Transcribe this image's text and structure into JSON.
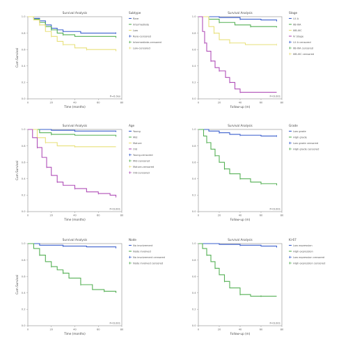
{
  "chart_data": [
    {
      "type": "line",
      "title": "Survival Analysis",
      "xlabel": "Time (months)",
      "ylabel": "Cum Survival",
      "xlim": [
        0,
        80
      ],
      "ylim": [
        0.0,
        1.0
      ],
      "x_ticks": [
        0,
        20,
        40,
        60,
        80
      ],
      "y_ticks": [
        0.0,
        0.2,
        0.4,
        0.6,
        0.8,
        1.0
      ],
      "legend_title": "Subtype",
      "legend_labels": [
        "Rare",
        "Intermediate",
        "Low",
        "Rare-censored",
        "Intermediate-censored",
        "Low-censored"
      ],
      "p_value": "P=0.0xx",
      "grid": false,
      "series": [
        {
          "color": "#3a5fcd",
          "points": [
            [
              0,
              1.0
            ],
            [
              5,
              0.98
            ],
            [
              10,
              0.95
            ],
            [
              15,
              0.9
            ],
            [
              20,
              0.86
            ],
            [
              25,
              0.84
            ],
            [
              30,
              0.82
            ],
            [
              45,
              0.8
            ],
            [
              75,
              0.8
            ]
          ]
        },
        {
          "color": "#55b055",
          "points": [
            [
              0,
              1.0
            ],
            [
              5,
              0.97
            ],
            [
              10,
              0.93
            ],
            [
              15,
              0.88
            ],
            [
              20,
              0.84
            ],
            [
              25,
              0.8
            ],
            [
              30,
              0.78
            ],
            [
              40,
              0.76
            ],
            [
              75,
              0.75
            ]
          ]
        },
        {
          "color": "#e8e07a",
          "points": [
            [
              0,
              1.0
            ],
            [
              5,
              0.96
            ],
            [
              10,
              0.9
            ],
            [
              15,
              0.82
            ],
            [
              20,
              0.76
            ],
            [
              25,
              0.7
            ],
            [
              30,
              0.66
            ],
            [
              40,
              0.62
            ],
            [
              50,
              0.6
            ],
            [
              75,
              0.58
            ]
          ]
        }
      ]
    },
    {
      "type": "line",
      "title": "Survival Analysis",
      "xlabel": "Follow-up (m)",
      "ylabel": "",
      "xlim": [
        0,
        80
      ],
      "ylim": [
        0.0,
        1.0
      ],
      "x_ticks": [
        0,
        20,
        40,
        60,
        80
      ],
      "y_ticks": [
        0.0,
        0.2,
        0.4,
        0.6,
        0.8,
        1.0
      ],
      "legend_title": "Stage",
      "legend_labels": [
        "I-II A",
        "IIB-IIIA",
        "IIIB-IIIC",
        "IV Stage",
        "I-II A censored",
        "IIB-IIIA censored",
        "IIIB-IIIC censored"
      ],
      "p_value": "P<0.001",
      "grid": false,
      "series": [
        {
          "color": "#3a5fcd",
          "points": [
            [
              0,
              1.0
            ],
            [
              20,
              0.99
            ],
            [
              40,
              0.97
            ],
            [
              60,
              0.96
            ],
            [
              75,
              0.95
            ]
          ]
        },
        {
          "color": "#55b055",
          "points": [
            [
              0,
              1.0
            ],
            [
              10,
              0.97
            ],
            [
              20,
              0.93
            ],
            [
              35,
              0.9
            ],
            [
              50,
              0.88
            ],
            [
              75,
              0.87
            ]
          ]
        },
        {
          "color": "#e8e07a",
          "points": [
            [
              0,
              1.0
            ],
            [
              10,
              0.88
            ],
            [
              15,
              0.8
            ],
            [
              20,
              0.72
            ],
            [
              30,
              0.68
            ],
            [
              45,
              0.66
            ],
            [
              75,
              0.66
            ]
          ]
        },
        {
          "color": "#b04fb8",
          "points": [
            [
              0,
              1.0
            ],
            [
              4,
              0.82
            ],
            [
              6,
              0.68
            ],
            [
              8,
              0.58
            ],
            [
              12,
              0.46
            ],
            [
              16,
              0.38
            ],
            [
              20,
              0.34
            ],
            [
              26,
              0.26
            ],
            [
              30,
              0.2
            ],
            [
              35,
              0.12
            ],
            [
              40,
              0.08
            ],
            [
              75,
              0.08
            ]
          ]
        }
      ]
    },
    {
      "type": "line",
      "title": "Survival Analysis",
      "xlabel": "Time (months)",
      "ylabel": "Cum Survival",
      "xlim": [
        0,
        80
      ],
      "ylim": [
        0.0,
        1.0
      ],
      "x_ticks": [
        0,
        20,
        40,
        60,
        80
      ],
      "y_ticks": [
        0.0,
        0.2,
        0.4,
        0.6,
        0.8,
        1.0
      ],
      "legend_title": "Age",
      "legend_labels": [
        "Young",
        "Mid",
        "Mature",
        "Old",
        "Young-censored",
        "Mid-censored",
        "Mature-censored",
        "Old-censored"
      ],
      "p_value": "P<0.001",
      "grid": false,
      "series": [
        {
          "color": "#3a5fcd",
          "points": [
            [
              0,
              1.0
            ],
            [
              20,
              0.99
            ],
            [
              40,
              0.98
            ],
            [
              75,
              0.97
            ]
          ]
        },
        {
          "color": "#55b055",
          "points": [
            [
              0,
              1.0
            ],
            [
              10,
              0.96
            ],
            [
              20,
              0.94
            ],
            [
              40,
              0.93
            ],
            [
              75,
              0.92
            ]
          ]
        },
        {
          "color": "#e8e07a",
          "points": [
            [
              0,
              1.0
            ],
            [
              8,
              0.9
            ],
            [
              15,
              0.84
            ],
            [
              25,
              0.8
            ],
            [
              40,
              0.79
            ],
            [
              75,
              0.79
            ]
          ]
        },
        {
          "color": "#b04fb8",
          "points": [
            [
              0,
              1.0
            ],
            [
              4,
              0.9
            ],
            [
              8,
              0.78
            ],
            [
              12,
              0.66
            ],
            [
              16,
              0.54
            ],
            [
              20,
              0.44
            ],
            [
              25,
              0.36
            ],
            [
              30,
              0.32
            ],
            [
              40,
              0.28
            ],
            [
              50,
              0.24
            ],
            [
              60,
              0.22
            ],
            [
              70,
              0.2
            ],
            [
              75,
              0.18
            ]
          ]
        }
      ]
    },
    {
      "type": "line",
      "title": "Survival Analysis",
      "xlabel": "Follow-up (m)",
      "ylabel": "",
      "xlim": [
        0,
        80
      ],
      "ylim": [
        0.0,
        1.0
      ],
      "x_ticks": [
        0,
        20,
        40,
        60,
        80
      ],
      "y_ticks": [
        0.0,
        0.2,
        0.4,
        0.6,
        0.8,
        1.0
      ],
      "legend_title": "Grade",
      "legend_labels": [
        "Low grade",
        "High grade",
        "Low grade censored",
        "High grade censored"
      ],
      "p_value": "P<0.001",
      "grid": false,
      "series": [
        {
          "color": "#3a5fcd",
          "points": [
            [
              0,
              1.0
            ],
            [
              10,
              0.98
            ],
            [
              20,
              0.96
            ],
            [
              30,
              0.94
            ],
            [
              40,
              0.93
            ],
            [
              60,
              0.92
            ],
            [
              75,
              0.92
            ]
          ]
        },
        {
          "color": "#55b055",
          "points": [
            [
              0,
              1.0
            ],
            [
              5,
              0.92
            ],
            [
              8,
              0.84
            ],
            [
              12,
              0.76
            ],
            [
              16,
              0.68
            ],
            [
              20,
              0.6
            ],
            [
              25,
              0.52
            ],
            [
              30,
              0.46
            ],
            [
              40,
              0.4
            ],
            [
              50,
              0.36
            ],
            [
              60,
              0.34
            ],
            [
              75,
              0.32
            ]
          ]
        }
      ]
    },
    {
      "type": "line",
      "title": "Survival Analysis",
      "xlabel": "Time (months)",
      "ylabel": "Cum Survival",
      "xlim": [
        0,
        80
      ],
      "ylim": [
        0.0,
        1.0
      ],
      "x_ticks": [
        0,
        20,
        40,
        60,
        80
      ],
      "y_ticks": [
        0.0,
        0.2,
        0.4,
        0.6,
        0.8,
        1.0
      ],
      "legend_title": "Node",
      "legend_labels": [
        "No involvement",
        "Node involved",
        "No involvement censored",
        "Node involved censored"
      ],
      "p_value": "P<0.001",
      "grid": false,
      "series": [
        {
          "color": "#3a5fcd",
          "points": [
            [
              0,
              1.0
            ],
            [
              10,
              0.98
            ],
            [
              30,
              0.97
            ],
            [
              50,
              0.96
            ],
            [
              75,
              0.95
            ]
          ]
        },
        {
          "color": "#55b055",
          "points": [
            [
              0,
              1.0
            ],
            [
              5,
              0.94
            ],
            [
              10,
              0.86
            ],
            [
              15,
              0.78
            ],
            [
              20,
              0.72
            ],
            [
              25,
              0.68
            ],
            [
              30,
              0.64
            ],
            [
              35,
              0.58
            ],
            [
              45,
              0.5
            ],
            [
              55,
              0.44
            ],
            [
              65,
              0.42
            ],
            [
              75,
              0.4
            ]
          ]
        }
      ]
    },
    {
      "type": "line",
      "title": "Survival Analysis",
      "xlabel": "Follow-up (m)",
      "ylabel": "",
      "xlim": [
        0,
        80
      ],
      "ylim": [
        0.0,
        1.0
      ],
      "x_ticks": [
        0,
        20,
        40,
        60,
        80
      ],
      "y_ticks": [
        0.0,
        0.2,
        0.4,
        0.6,
        0.8,
        1.0
      ],
      "legend_title": "Ki-67",
      "legend_labels": [
        "Low expression",
        "High expression",
        "Low expression censored",
        "High expression censored"
      ],
      "p_value": "P<0.001",
      "grid": false,
      "series": [
        {
          "color": "#3a5fcd",
          "points": [
            [
              0,
              1.0
            ],
            [
              20,
              0.99
            ],
            [
              40,
              0.98
            ],
            [
              60,
              0.97
            ],
            [
              75,
              0.96
            ]
          ]
        },
        {
          "color": "#55b055",
          "points": [
            [
              0,
              1.0
            ],
            [
              4,
              0.94
            ],
            [
              8,
              0.86
            ],
            [
              12,
              0.78
            ],
            [
              16,
              0.7
            ],
            [
              20,
              0.62
            ],
            [
              25,
              0.54
            ],
            [
              30,
              0.46
            ],
            [
              40,
              0.38
            ],
            [
              50,
              0.36
            ],
            [
              60,
              0.36
            ],
            [
              75,
              0.36
            ]
          ]
        }
      ]
    }
  ]
}
